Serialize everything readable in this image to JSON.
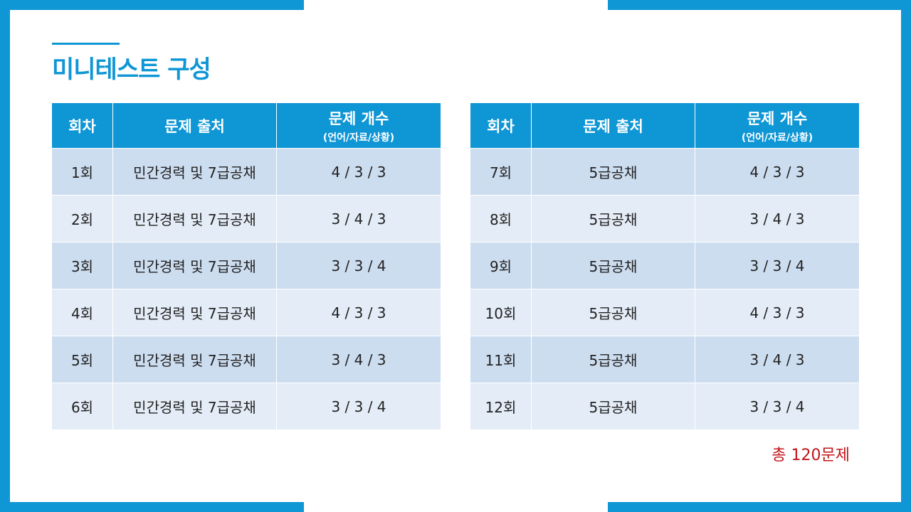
{
  "title": "미니테스트 구성",
  "columns": {
    "round": "회차",
    "source": "문제 출처",
    "count": "문제 개수",
    "count_sub": "(언어/자료/상황)"
  },
  "left_table": [
    {
      "round": "1회",
      "source": "민간경력 및 7급공채",
      "count": "4 / 3 / 3"
    },
    {
      "round": "2회",
      "source": "민간경력 및 7급공채",
      "count": "3 / 4 / 3"
    },
    {
      "round": "3회",
      "source": "민간경력 및 7급공채",
      "count": "3 / 3 / 4"
    },
    {
      "round": "4회",
      "source": "민간경력 및 7급공채",
      "count": "4 / 3 / 3"
    },
    {
      "round": "5회",
      "source": "민간경력 및 7급공채",
      "count": "3 / 4 / 3"
    },
    {
      "round": "6회",
      "source": "민간경력 및 7급공채",
      "count": "3 / 3 / 4"
    }
  ],
  "right_table": [
    {
      "round": "7회",
      "source": "5급공채",
      "count": "4 / 3 / 3"
    },
    {
      "round": "8회",
      "source": "5급공채",
      "count": "3 / 4 / 3"
    },
    {
      "round": "9회",
      "source": "5급공채",
      "count": "3 / 3 / 4"
    },
    {
      "round": "10회",
      "source": "5급공채",
      "count": "4 / 3 / 3"
    },
    {
      "round": "11회",
      "source": "5급공채",
      "count": "3 / 4 / 3"
    },
    {
      "round": "12회",
      "source": "5급공채",
      "count": "3 / 3 / 4"
    }
  ],
  "total": "총 120문제",
  "colors": {
    "accent": "#0E96D5",
    "row_dark": "#CDDDF0",
    "row_light": "#E4EDF7",
    "total_text": "#C0141A"
  }
}
